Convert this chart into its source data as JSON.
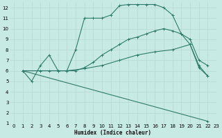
{
  "xlabel": "Humidex (Indice chaleur)",
  "xlim": [
    -0.5,
    23
  ],
  "ylim": [
    1,
    12.5
  ],
  "xticks": [
    0,
    1,
    2,
    3,
    4,
    5,
    6,
    7,
    8,
    9,
    10,
    11,
    12,
    13,
    14,
    15,
    16,
    17,
    18,
    19,
    20,
    21,
    22,
    23
  ],
  "yticks": [
    1,
    2,
    3,
    4,
    5,
    6,
    7,
    8,
    9,
    10,
    11,
    12
  ],
  "bg_color": "#c8eae4",
  "line_color": "#2d7a6a",
  "grid_major_color": "#b8d8d2",
  "grid_minor_color": "#d0ecea",
  "line1_x": [
    1,
    2,
    3,
    4,
    5,
    6,
    7,
    8,
    9,
    10,
    11,
    12,
    13,
    14,
    15,
    16,
    17,
    18,
    19,
    20,
    21,
    22
  ],
  "line1_y": [
    6.0,
    5.0,
    6.5,
    7.5,
    6.0,
    6.0,
    8.0,
    11.0,
    11.0,
    11.0,
    11.3,
    12.2,
    12.3,
    12.3,
    12.3,
    12.3,
    12.0,
    11.3,
    9.5,
    8.5,
    6.3,
    5.5
  ],
  "line2_x": [
    1,
    3,
    4,
    5,
    6,
    7,
    8,
    9,
    10,
    11,
    12,
    13,
    14,
    15,
    16,
    17,
    18,
    19,
    20,
    21,
    22
  ],
  "line2_y": [
    6.0,
    6.0,
    6.0,
    6.0,
    6.0,
    6.0,
    6.3,
    6.8,
    7.5,
    8.0,
    8.5,
    9.0,
    9.2,
    9.5,
    9.8,
    10.0,
    9.8,
    9.5,
    9.0,
    7.0,
    6.5
  ],
  "line3_x": [
    1,
    3,
    5,
    6,
    8,
    10,
    12,
    14,
    16,
    18,
    20,
    21,
    22
  ],
  "line3_y": [
    6.0,
    6.0,
    6.0,
    6.0,
    6.2,
    6.5,
    7.0,
    7.5,
    7.8,
    8.0,
    8.5,
    6.5,
    5.5
  ],
  "line4_x": [
    1,
    22
  ],
  "line4_y": [
    6.0,
    1.2
  ]
}
